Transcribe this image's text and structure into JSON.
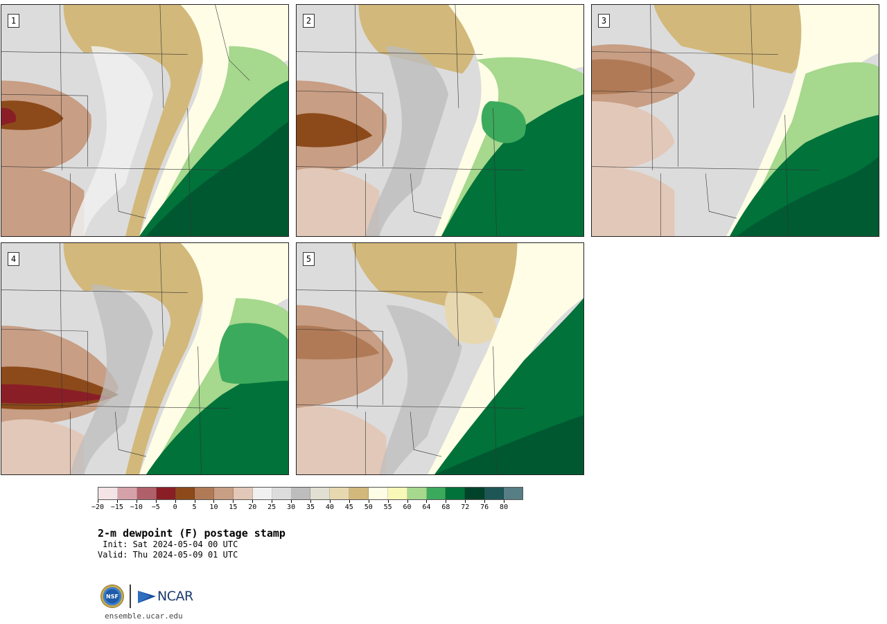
{
  "panels": [
    "1",
    "2",
    "3",
    "4",
    "5"
  ],
  "colorbar": {
    "colors": [
      "#f4e4e6",
      "#d6a2aa",
      "#b0606a",
      "#8a1e26",
      "#8c4a1a",
      "#b07a56",
      "#c89e84",
      "#e2c8b8",
      "#f0f0f0",
      "#dcdcdc",
      "#bdbdbd",
      "#e2e0d2",
      "#e8d8b0",
      "#d2b87a",
      "#fffde6",
      "#f8f8b8",
      "#a6d88e",
      "#3caa5c",
      "#00723a",
      "#00432a",
      "#1e5656",
      "#567e84"
    ],
    "ticks": [
      "−20",
      "−15",
      "−10",
      "−5",
      "0",
      "5",
      "10",
      "15",
      "20",
      "25",
      "30",
      "35",
      "40",
      "45",
      "50",
      "55",
      "60",
      "64",
      "68",
      "72",
      "76",
      "80"
    ]
  },
  "title": "2-m dewpoint (F) postage stamp",
  "init": " Init: Sat 2024-05-04 00 UTC",
  "valid": "Valid: Thu 2024-05-09 01 UTC",
  "logo": {
    "nsf_text": "NSF",
    "ncar_text": "NCAR"
  },
  "website": "ensemble.ucar.edu"
}
